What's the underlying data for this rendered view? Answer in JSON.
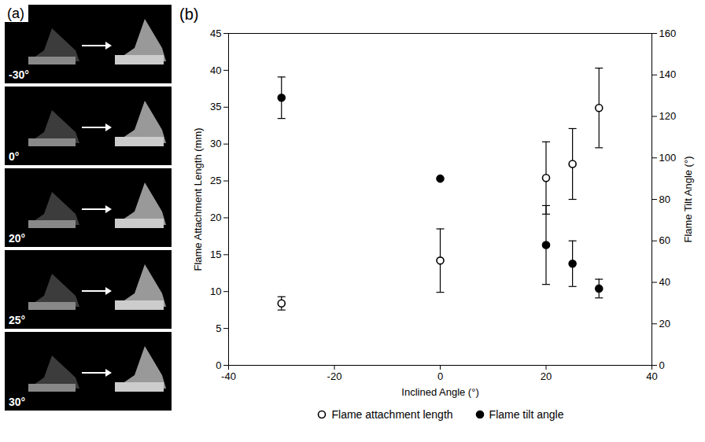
{
  "panel_a": {
    "label": "(a)",
    "frames": [
      "-30°",
      "0°",
      "20°",
      "25°",
      "30°"
    ]
  },
  "chart_data": {
    "type": "scatter",
    "title": "(b)",
    "x_label": "Inclined Angle (°)",
    "y_label": "Flame Attachment Length (mm)",
    "y2_label": "Flame Tilt Angle (°)",
    "x": [
      -30,
      0,
      20,
      25,
      30
    ],
    "xlim": [
      -40,
      40
    ],
    "xticks": [
      -40,
      -20,
      0,
      20,
      40
    ],
    "ylim": [
      0,
      45
    ],
    "yticks": [
      0,
      5,
      10,
      15,
      20,
      25,
      30,
      35,
      40,
      45
    ],
    "y2lim": [
      0,
      160
    ],
    "y2ticks": [
      0,
      20,
      40,
      60,
      80,
      100,
      120,
      140,
      160
    ],
    "grid": false,
    "legend": "bottom",
    "series": [
      {
        "name": "Flame attachment length",
        "color": "#000000",
        "marker": "open circle",
        "values": [
          8.4,
          14.2,
          25.4,
          27.3,
          34.9
        ],
        "errors": [
          0.9,
          4.3,
          4.9,
          4.8,
          5.4
        ]
      },
      {
        "name": "Flame tilt angle",
        "color": "#000000",
        "marker": "filled circle",
        "axis": "y2",
        "values": [
          129,
          90,
          58,
          49,
          37
        ],
        "errors": [
          10,
          null,
          19,
          11,
          4.5
        ]
      }
    ]
  }
}
